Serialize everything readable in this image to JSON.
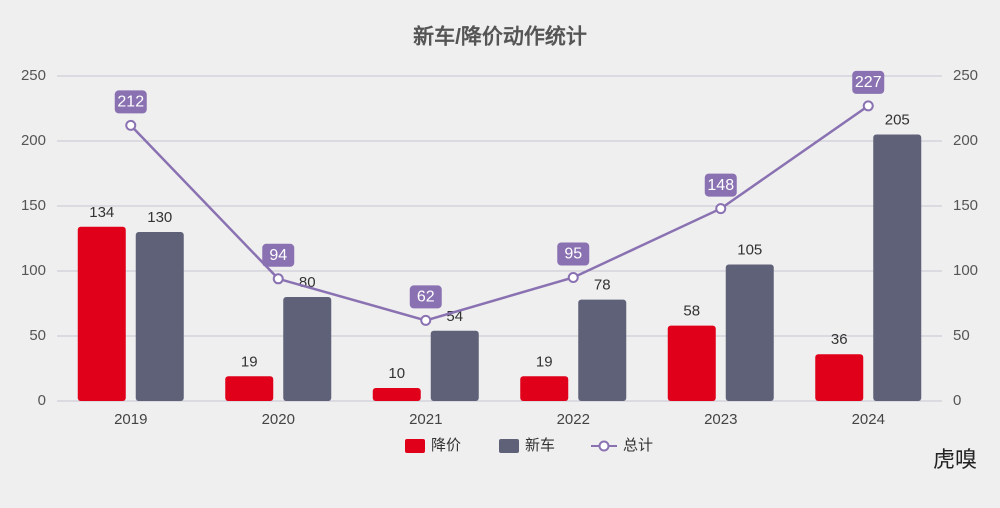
{
  "chart_data": {
    "type": "bar",
    "title": "新车/降价动作统计",
    "categories": [
      "2019",
      "2020",
      "2021",
      "2022",
      "2023",
      "2024"
    ],
    "series": [
      {
        "name": "降价",
        "type": "bar",
        "color": "#e1001a",
        "values": [
          134,
          19,
          10,
          19,
          58,
          36
        ]
      },
      {
        "name": "新车",
        "type": "bar",
        "color": "#5f6178",
        "values": [
          130,
          80,
          54,
          78,
          105,
          205
        ]
      },
      {
        "name": "总计",
        "type": "line",
        "axis": "y2",
        "color": "#8a72b2",
        "values": [
          212,
          94,
          62,
          95,
          148,
          227
        ]
      }
    ],
    "ylim": [
      0,
      250
    ],
    "yticks": [
      0,
      50,
      100,
      150,
      200,
      250
    ],
    "y2lim": [
      0,
      250
    ],
    "y2ticks": [
      0,
      50,
      100,
      150,
      200,
      250
    ],
    "grid": true,
    "legend": "bottom",
    "watermark": "虎嗅"
  }
}
